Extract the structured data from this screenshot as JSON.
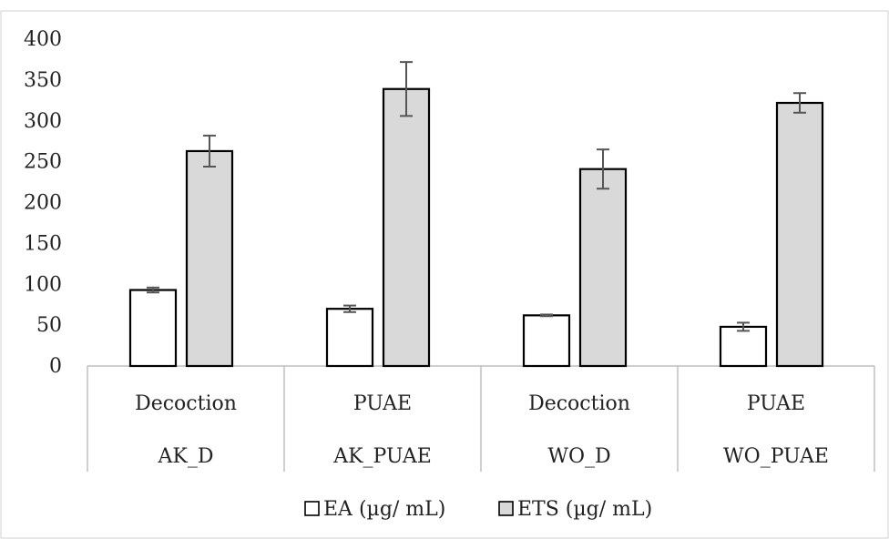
{
  "chart_data": {
    "type": "bar",
    "title": "",
    "xlabel": "",
    "ylabel": "",
    "ylim": [
      0,
      400
    ],
    "yticks": [
      0,
      50,
      100,
      150,
      200,
      250,
      300,
      350,
      400
    ],
    "grid": false,
    "legend_position": "bottom",
    "categories": [
      {
        "method": "Decoction",
        "sample": "AK_D"
      },
      {
        "method": "PUAE",
        "sample": "AK_PUAE"
      },
      {
        "method": "Decoction",
        "sample": "WO_D"
      },
      {
        "method": "PUAE",
        "sample": "WO_PUAE"
      }
    ],
    "series": [
      {
        "name": "EA (µg/ mL)",
        "color": "#ffffff",
        "values": [
          93,
          70,
          62,
          48
        ],
        "errors": [
          3,
          4,
          1,
          5
        ]
      },
      {
        "name": "ETS (µg/ mL)",
        "color": "#d9d9d9",
        "values": [
          263,
          339,
          241,
          322
        ],
        "errors": [
          19,
          33,
          24,
          12
        ]
      }
    ]
  }
}
